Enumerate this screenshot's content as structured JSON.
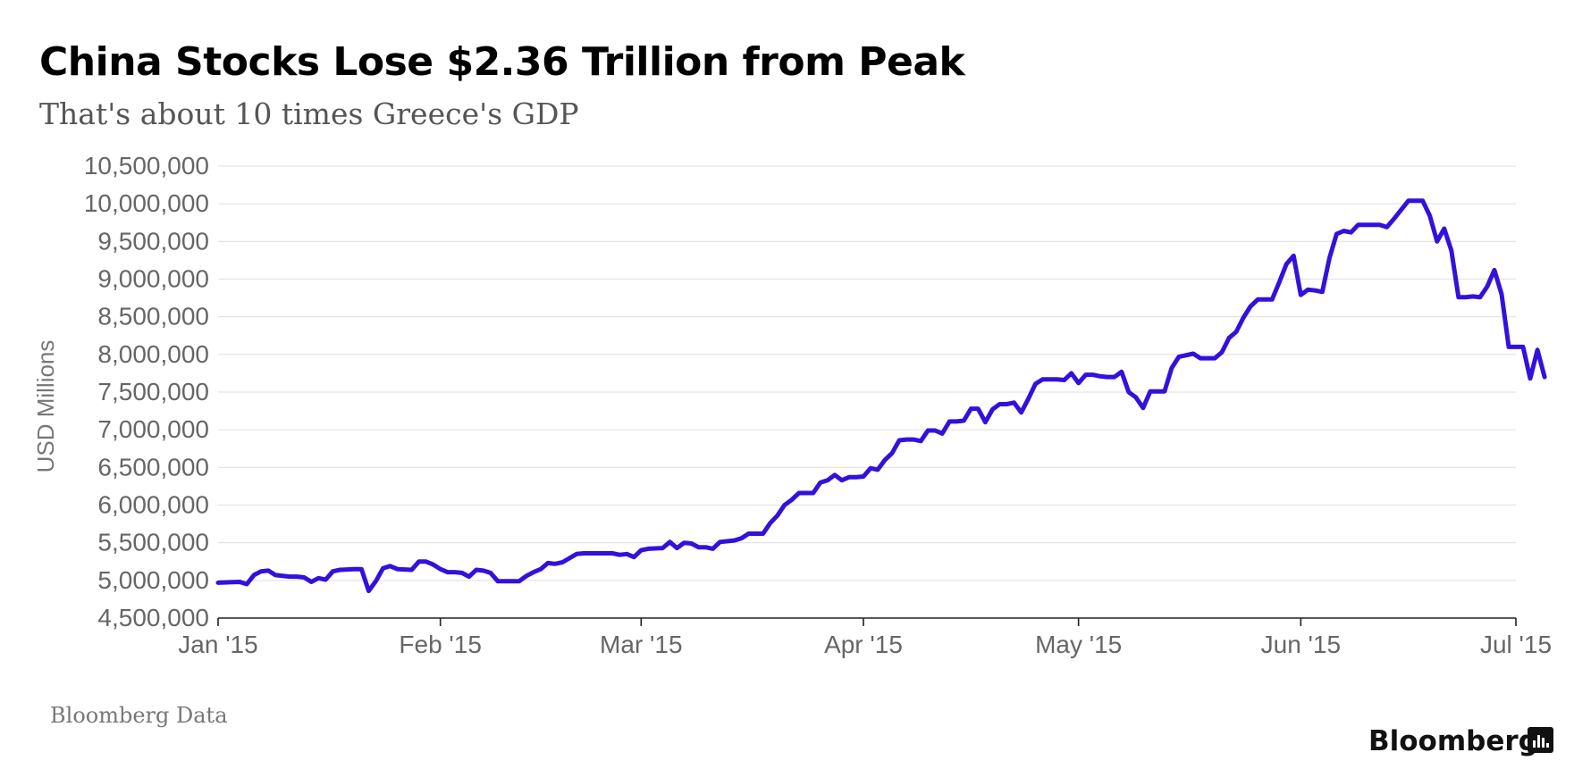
{
  "header": {
    "title": "China Stocks Lose $2.36 Trillion from Peak",
    "subtitle": "That's about 10 times Greece's GDP"
  },
  "footer": {
    "source": "Bloomberg Data",
    "brand": "Bloomberg"
  },
  "colors": {
    "line": "#3311dd",
    "grid": "#e3e3e3",
    "axis": "#222222",
    "tick_text": "#666666",
    "title": "#000000",
    "subtitle": "#555555"
  },
  "chart_data": {
    "type": "line",
    "title": "China Stocks Lose $2.36 Trillion from Peak",
    "subtitle": "That's about 10 times Greece's GDP",
    "xlabel": "",
    "ylabel": "USD Millions",
    "xlim": [
      "2015-01-01",
      "2015-07-01"
    ],
    "ylim": [
      4500000,
      10500000
    ],
    "x_tick_labels": [
      {
        "date": "2015-01-01",
        "label": "Jan '15"
      },
      {
        "date": "2015-02-01",
        "label": "Feb '15"
      },
      {
        "date": "2015-03-01",
        "label": "Mar '15"
      },
      {
        "date": "2015-04-01",
        "label": "Apr '15"
      },
      {
        "date": "2015-05-01",
        "label": "May '15"
      },
      {
        "date": "2015-06-01",
        "label": "Jun '15"
      },
      {
        "date": "2015-07-01",
        "label": "Jul '15"
      }
    ],
    "y_ticks": [
      4500000,
      5000000,
      5500000,
      6000000,
      6500000,
      7000000,
      7500000,
      8000000,
      8500000,
      9000000,
      9500000,
      10000000,
      10500000
    ],
    "y_tick_labels": [
      "4,500,000",
      "5,000,000",
      "5,500,000",
      "6,000,000",
      "6,500,000",
      "7,000,000",
      "7,500,000",
      "8,000,000",
      "8,500,000",
      "9,000,000",
      "9,500,000",
      "10,000,000",
      "10,500,000"
    ],
    "grid": true,
    "legend": "none",
    "series": [
      {
        "points": [
          [
            "2015-01-01",
            4970000
          ],
          [
            "2015-01-04",
            4980000
          ],
          [
            "2015-01-05",
            4950000
          ],
          [
            "2015-01-06",
            5070000
          ],
          [
            "2015-01-07",
            5120000
          ],
          [
            "2015-01-08",
            5130000
          ],
          [
            "2015-01-09",
            5070000
          ],
          [
            "2015-01-11",
            5050000
          ],
          [
            "2015-01-12",
            5050000
          ],
          [
            "2015-01-13",
            5040000
          ],
          [
            "2015-01-14",
            4980000
          ],
          [
            "2015-01-15",
            5030000
          ],
          [
            "2015-01-16",
            5010000
          ],
          [
            "2015-01-17",
            5120000
          ],
          [
            "2015-01-18",
            5140000
          ],
          [
            "2015-01-20",
            5150000
          ],
          [
            "2015-01-21",
            5150000
          ],
          [
            "2015-01-22",
            4860000
          ],
          [
            "2015-01-23",
            4990000
          ],
          [
            "2015-01-24",
            5160000
          ],
          [
            "2015-01-25",
            5190000
          ],
          [
            "2015-01-26",
            5150000
          ],
          [
            "2015-01-28",
            5140000
          ],
          [
            "2015-01-29",
            5250000
          ],
          [
            "2015-01-30",
            5250000
          ],
          [
            "2015-01-31",
            5210000
          ],
          [
            "2015-02-01",
            5150000
          ],
          [
            "2015-02-02",
            5110000
          ],
          [
            "2015-02-03",
            5110000
          ],
          [
            "2015-02-04",
            5100000
          ],
          [
            "2015-02-05",
            5050000
          ],
          [
            "2015-02-06",
            5140000
          ],
          [
            "2015-02-07",
            5130000
          ],
          [
            "2015-02-08",
            5100000
          ],
          [
            "2015-02-09",
            4990000
          ],
          [
            "2015-02-10",
            4990000
          ],
          [
            "2015-02-12",
            4990000
          ],
          [
            "2015-02-13",
            5060000
          ],
          [
            "2015-02-14",
            5110000
          ],
          [
            "2015-02-15",
            5150000
          ],
          [
            "2015-02-16",
            5230000
          ],
          [
            "2015-02-17",
            5220000
          ],
          [
            "2015-02-18",
            5240000
          ],
          [
            "2015-02-20",
            5350000
          ],
          [
            "2015-02-21",
            5360000
          ],
          [
            "2015-02-23",
            5360000
          ],
          [
            "2015-02-24",
            5360000
          ],
          [
            "2015-02-25",
            5360000
          ],
          [
            "2015-02-26",
            5340000
          ],
          [
            "2015-02-27",
            5350000
          ],
          [
            "2015-02-28",
            5310000
          ],
          [
            "2015-03-01",
            5400000
          ],
          [
            "2015-03-02",
            5420000
          ],
          [
            "2015-03-04",
            5430000
          ],
          [
            "2015-03-05",
            5510000
          ],
          [
            "2015-03-06",
            5430000
          ],
          [
            "2015-03-07",
            5500000
          ],
          [
            "2015-03-08",
            5490000
          ],
          [
            "2015-03-09",
            5440000
          ],
          [
            "2015-03-10",
            5440000
          ],
          [
            "2015-03-11",
            5420000
          ],
          [
            "2015-03-12",
            5510000
          ],
          [
            "2015-03-14",
            5530000
          ],
          [
            "2015-03-15",
            5560000
          ],
          [
            "2015-03-16",
            5620000
          ],
          [
            "2015-03-18",
            5620000
          ],
          [
            "2015-03-19",
            5760000
          ],
          [
            "2015-03-20",
            5860000
          ],
          [
            "2015-03-21",
            6000000
          ],
          [
            "2015-03-22",
            6070000
          ],
          [
            "2015-03-23",
            6160000
          ],
          [
            "2015-03-25",
            6160000
          ],
          [
            "2015-03-26",
            6300000
          ],
          [
            "2015-03-27",
            6330000
          ],
          [
            "2015-03-28",
            6400000
          ],
          [
            "2015-03-29",
            6330000
          ],
          [
            "2015-03-30",
            6370000
          ],
          [
            "2015-03-31",
            6370000
          ],
          [
            "2015-04-01",
            6380000
          ],
          [
            "2015-04-02",
            6490000
          ],
          [
            "2015-04-03",
            6470000
          ],
          [
            "2015-04-04",
            6600000
          ],
          [
            "2015-04-05",
            6690000
          ],
          [
            "2015-04-06",
            6860000
          ],
          [
            "2015-04-07",
            6870000
          ],
          [
            "2015-04-08",
            6870000
          ],
          [
            "2015-04-09",
            6850000
          ],
          [
            "2015-04-10",
            6990000
          ],
          [
            "2015-04-11",
            6990000
          ],
          [
            "2015-04-12",
            6950000
          ],
          [
            "2015-04-13",
            7110000
          ],
          [
            "2015-04-14",
            7110000
          ],
          [
            "2015-04-15",
            7120000
          ],
          [
            "2015-04-16",
            7280000
          ],
          [
            "2015-04-17",
            7280000
          ],
          [
            "2015-04-18",
            7100000
          ],
          [
            "2015-04-19",
            7270000
          ],
          [
            "2015-04-20",
            7340000
          ],
          [
            "2015-04-21",
            7340000
          ],
          [
            "2015-04-22",
            7360000
          ],
          [
            "2015-04-23",
            7230000
          ],
          [
            "2015-04-24",
            7410000
          ],
          [
            "2015-04-25",
            7610000
          ],
          [
            "2015-04-26",
            7670000
          ],
          [
            "2015-04-27",
            7670000
          ],
          [
            "2015-04-28",
            7670000
          ],
          [
            "2015-04-29",
            7660000
          ],
          [
            "2015-04-30",
            7750000
          ],
          [
            "2015-05-01",
            7620000
          ],
          [
            "2015-05-02",
            7730000
          ],
          [
            "2015-05-03",
            7730000
          ],
          [
            "2015-05-04",
            7710000
          ],
          [
            "2015-05-05",
            7700000
          ],
          [
            "2015-05-06",
            7700000
          ],
          [
            "2015-05-07",
            7770000
          ],
          [
            "2015-05-08",
            7500000
          ],
          [
            "2015-05-09",
            7430000
          ],
          [
            "2015-05-10",
            7290000
          ],
          [
            "2015-05-11",
            7510000
          ],
          [
            "2015-05-12",
            7510000
          ],
          [
            "2015-05-13",
            7510000
          ],
          [
            "2015-05-14",
            7820000
          ],
          [
            "2015-05-15",
            7970000
          ],
          [
            "2015-05-17",
            8010000
          ],
          [
            "2015-05-18",
            7950000
          ],
          [
            "2015-05-19",
            7950000
          ],
          [
            "2015-05-20",
            7950000
          ],
          [
            "2015-05-21",
            8030000
          ],
          [
            "2015-05-22",
            8220000
          ],
          [
            "2015-05-23",
            8300000
          ],
          [
            "2015-05-24",
            8490000
          ],
          [
            "2015-05-25",
            8640000
          ],
          [
            "2015-05-26",
            8730000
          ],
          [
            "2015-05-27",
            8730000
          ],
          [
            "2015-05-28",
            8730000
          ],
          [
            "2015-05-29",
            8960000
          ],
          [
            "2015-05-30",
            9200000
          ],
          [
            "2015-05-31",
            9310000
          ],
          [
            "2015-06-01",
            8790000
          ],
          [
            "2015-06-02",
            8860000
          ],
          [
            "2015-06-03",
            8850000
          ],
          [
            "2015-06-04",
            8830000
          ],
          [
            "2015-06-05",
            9280000
          ],
          [
            "2015-06-06",
            9600000
          ],
          [
            "2015-06-07",
            9640000
          ],
          [
            "2015-06-08",
            9620000
          ],
          [
            "2015-06-09",
            9720000
          ],
          [
            "2015-06-10",
            9720000
          ],
          [
            "2015-06-11",
            9720000
          ],
          [
            "2015-06-12",
            9720000
          ],
          [
            "2015-06-13",
            9690000
          ],
          [
            "2015-06-14",
            9800000
          ],
          [
            "2015-06-15",
            9920000
          ],
          [
            "2015-06-16",
            10040000
          ],
          [
            "2015-06-17",
            10040000
          ],
          [
            "2015-06-18",
            10040000
          ],
          [
            "2015-06-19",
            9840000
          ],
          [
            "2015-06-20",
            9500000
          ],
          [
            "2015-06-21",
            9670000
          ],
          [
            "2015-06-22",
            9380000
          ],
          [
            "2015-06-23",
            8760000
          ],
          [
            "2015-06-24",
            8760000
          ],
          [
            "2015-06-25",
            8770000
          ],
          [
            "2015-06-26",
            8760000
          ],
          [
            "2015-06-27",
            8900000
          ],
          [
            "2015-06-28",
            9120000
          ],
          [
            "2015-06-29",
            8800000
          ],
          [
            "2015-06-30",
            8100000
          ],
          [
            "2015-07-01",
            8100000
          ],
          [
            "2015-07-02",
            8100000
          ],
          [
            "2015-07-03",
            7680000
          ],
          [
            "2015-07-04",
            8060000
          ],
          [
            "2015-07-05",
            7700000
          ]
        ]
      }
    ]
  }
}
